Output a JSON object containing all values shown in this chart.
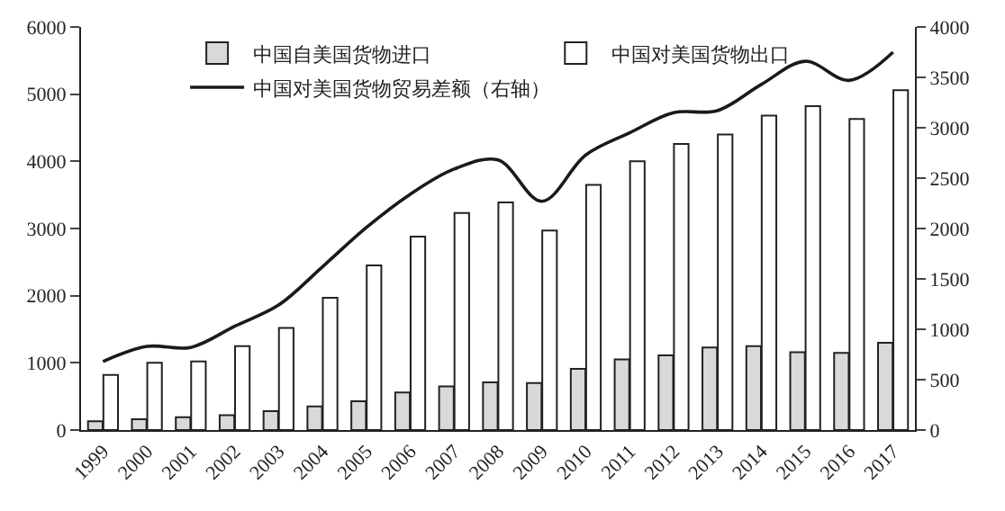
{
  "chart_data": {
    "type": "bar",
    "categories": [
      "1999",
      "2000",
      "2001",
      "2002",
      "2003",
      "2004",
      "2005",
      "2006",
      "2007",
      "2008",
      "2009",
      "2010",
      "2011",
      "2012",
      "2013",
      "2014",
      "2015",
      "2016",
      "2017"
    ],
    "series": [
      {
        "name": "中国自美国货物进口",
        "color": "#d9d9d9",
        "values": [
          130,
          160,
          190,
          220,
          280,
          350,
          430,
          560,
          650,
          710,
          700,
          910,
          1050,
          1110,
          1230,
          1250,
          1160,
          1150,
          1300
        ]
      },
      {
        "name": "中国对美国货物出口",
        "color": "#ffffff",
        "values": [
          820,
          1000,
          1020,
          1250,
          1520,
          1970,
          2450,
          2880,
          3230,
          3390,
          2970,
          3650,
          4000,
          4260,
          4400,
          4680,
          4820,
          4630,
          5060
        ]
      },
      {
        "name": "中国对美国货物贸易差额（右轴）",
        "type": "line",
        "axis": "y2",
        "color": "#1a1a1a",
        "values": [
          680,
          830,
          820,
          1030,
          1240,
          1620,
          2010,
          2340,
          2590,
          2680,
          2270,
          2730,
          2950,
          3150,
          3170,
          3430,
          3660,
          3470,
          3750
        ]
      }
    ],
    "ylim": [
      0,
      6000
    ],
    "yticks": [
      0,
      1000,
      2000,
      3000,
      4000,
      5000,
      6000
    ],
    "y2lim": [
      0,
      4000
    ],
    "y2ticks": [
      0,
      500,
      1000,
      1500,
      2000,
      2500,
      3000,
      3500,
      4000
    ],
    "legend": "top",
    "marker": "none",
    "line_style": "solid"
  }
}
